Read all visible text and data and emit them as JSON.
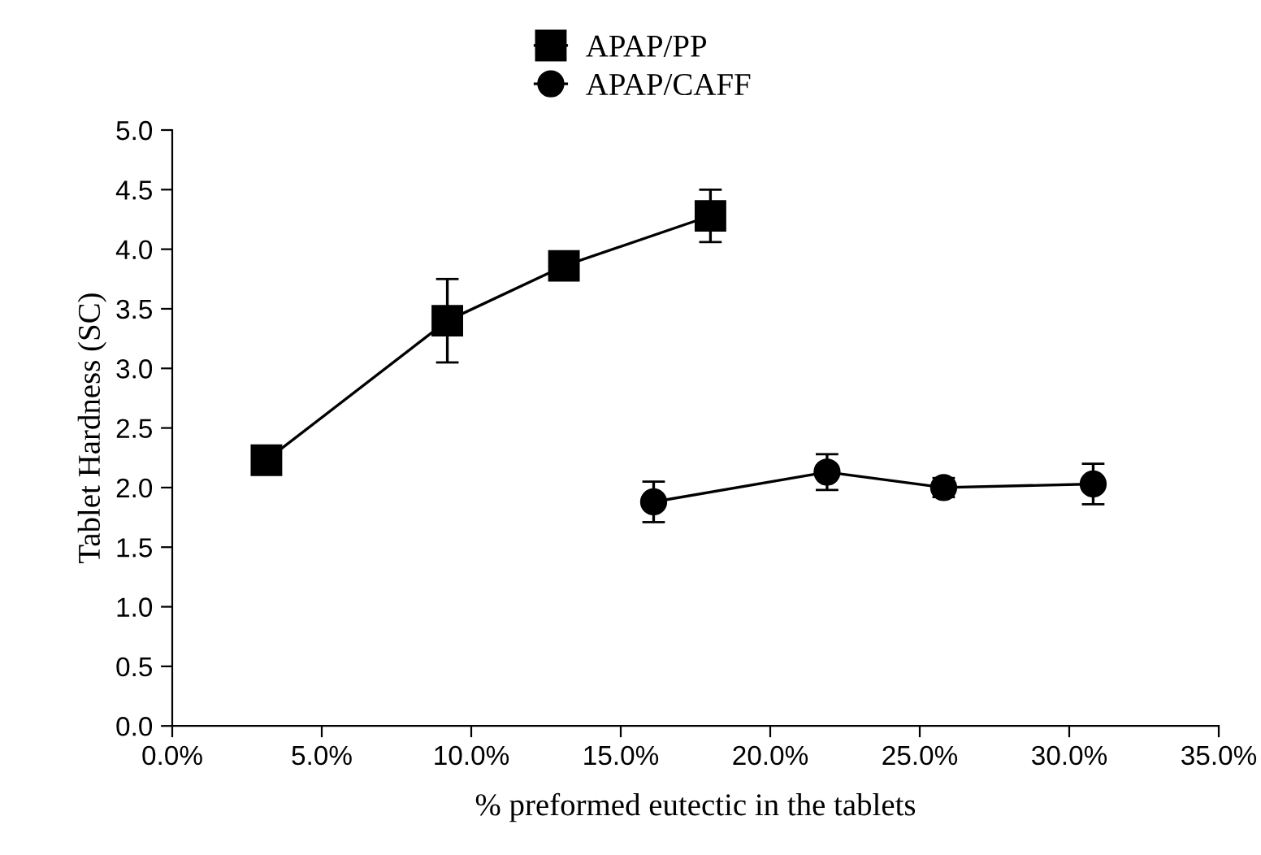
{
  "chart_data": {
    "type": "line",
    "xlabel": "% preformed eutectic in the tablets",
    "ylabel": "Tablet Hardness (SC)",
    "xlim": [
      0,
      0.35
    ],
    "xticks": [
      {
        "value": 0,
        "label": "0.0%"
      },
      {
        "value": 0.05,
        "label": "5.0%"
      },
      {
        "value": 0.1,
        "label": "10.0%"
      },
      {
        "value": 0.15,
        "label": "15.0%"
      },
      {
        "value": 0.2,
        "label": "20.0%"
      },
      {
        "value": 0.25,
        "label": "25.0%"
      },
      {
        "value": 0.3,
        "label": "30.0%"
      },
      {
        "value": 0.35,
        "label": "35.0%"
      }
    ],
    "ylim": [
      0,
      5
    ],
    "yticks": [
      {
        "value": 0,
        "label": "0.0"
      },
      {
        "value": 0.5,
        "label": "0.5"
      },
      {
        "value": 1,
        "label": "1.0"
      },
      {
        "value": 1.5,
        "label": "1.5"
      },
      {
        "value": 2,
        "label": "2.0"
      },
      {
        "value": 2.5,
        "label": "2.5"
      },
      {
        "value": 3,
        "label": "3.0"
      },
      {
        "value": 3.5,
        "label": "3.5"
      },
      {
        "value": 4,
        "label": "4.0"
      },
      {
        "value": 4.5,
        "label": "4.5"
      },
      {
        "value": 5,
        "label": "5.0"
      }
    ],
    "grid": false,
    "legend": "top",
    "line_style": "solid",
    "series": [
      {
        "name": "APAP/PP",
        "color": "#000000",
        "marker": "square",
        "x": [
          0.0315,
          0.092,
          0.131,
          0.18
        ],
        "values": [
          2.23,
          3.4,
          3.86,
          4.28
        ],
        "errors": [
          null,
          0.35,
          null,
          0.22
        ]
      },
      {
        "name": "APAP/CAFF",
        "color": "#000000",
        "marker": "circle",
        "x": [
          0.161,
          0.219,
          0.258,
          0.308
        ],
        "values": [
          1.88,
          2.13,
          2.0,
          2.03
        ],
        "errors": [
          0.17,
          0.15,
          0.08,
          0.17
        ]
      }
    ]
  }
}
